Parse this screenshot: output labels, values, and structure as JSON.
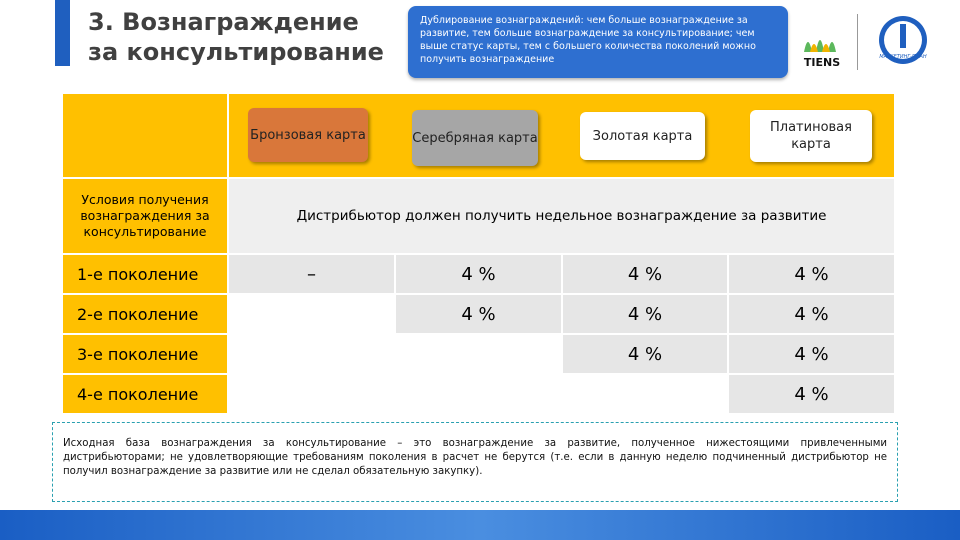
{
  "header": {
    "title": [
      "3. Вознаграждение",
      "за консультирование"
    ],
    "callout": "Дублирование вознаграждений: чем больше вознаграждение за развитие, тем больше вознаграждение за консультирование; чем выше статус карты, тем с большего количества поколений можно получить вознаграждение"
  },
  "logos": {
    "brand": "TIENS",
    "plan": "МАРКЕТИНГ-ПЛАН"
  },
  "table": {
    "cards": [
      "Бронзовая карта",
      "Серебряная карта",
      "Золотая карта",
      "Платиновая карта"
    ],
    "condition": {
      "label": "Условия получения вознаграждения за консультирование",
      "text": "Дистрибьютор должен получить недельное вознаграждение за развитие"
    },
    "rows": [
      [
        "1-е поколение",
        "–",
        "4 %",
        "4 %",
        "4 %"
      ],
      [
        "2-е поколение",
        null,
        "4 %",
        "4 %",
        "4 %"
      ],
      [
        "3-е поколение",
        null,
        null,
        "4 %",
        "4 %"
      ],
      [
        "4-е поколение",
        null,
        null,
        null,
        "4 %"
      ]
    ]
  },
  "footnote": "Исходная база вознаграждения за консультирование – это вознаграждение за развитие, полученное нижестоящими привлеченными дистрибьюторами; не удовлетворяющие требованиям поколения в расчет не берутся (т.е. если в данную неделю подчиненный дистрибьютор не получил вознаграждение за развитие или не сделал обязательную закупку)."
}
